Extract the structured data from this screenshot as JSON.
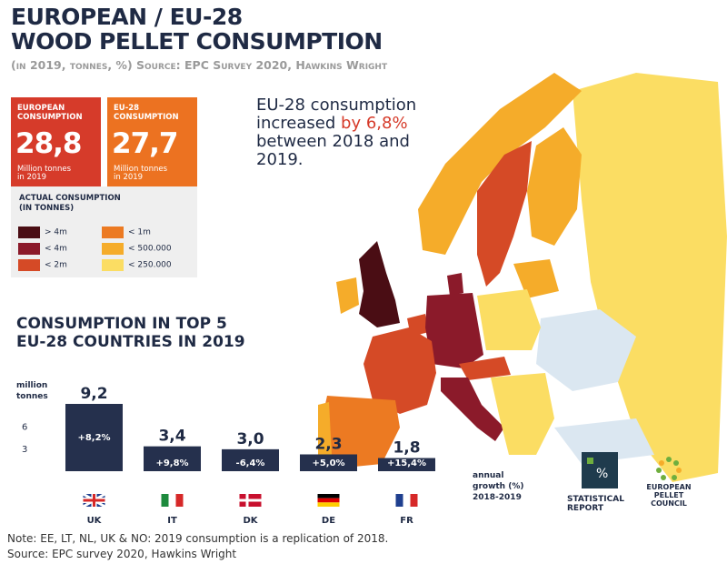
{
  "header": {
    "title_line1": "European / EU-28",
    "title_line2": "Wood pellet consumption",
    "subtitle": "(in 2019, tonnes, %) Source: EPC Survey 2020, Hawkins Wright"
  },
  "kpis": {
    "european": {
      "label_line1": "European",
      "label_line2": "consumption",
      "value": "28,8",
      "unit_line1": "Million tonnes",
      "unit_line2": "in 2019"
    },
    "eu28": {
      "label_line1": "EU-28",
      "label_line2": "consumption",
      "value": "27,7",
      "unit_line1": "Million tonnes",
      "unit_line2": "in 2019"
    }
  },
  "legend": {
    "title_line1": "Actual consumption",
    "title_line2": "(in tonnes)",
    "items": [
      {
        "label": "> 4m",
        "color": "#4a0d14"
      },
      {
        "label": "< 4m",
        "color": "#8b1a2a"
      },
      {
        "label": "< 2m",
        "color": "#d54a26"
      },
      {
        "label": "< 1m",
        "color": "#ec7a22"
      },
      {
        "label": "< 500.000",
        "color": "#f5ac2a"
      },
      {
        "label": "< 250.000",
        "color": "#fbdd63"
      }
    ]
  },
  "headline": {
    "line1": "EU-28 consumption",
    "line2_pre": "increased ",
    "line2_highlight": "by 6,8%",
    "line3": "between 2018 and",
    "line4": "2019."
  },
  "top5": {
    "title_line1": "Consumption in top 5",
    "title_line2": "EU-28 countries in 2019"
  },
  "chart_data": {
    "type": "bar",
    "categories": [
      "UK",
      "IT",
      "DK",
      "DE",
      "FR"
    ],
    "values": [
      9.2,
      3.4,
      3.0,
      2.3,
      1.8
    ],
    "value_labels": [
      "9,2",
      "3,4",
      "3,0",
      "2,3",
      "1,8"
    ],
    "growth_labels": [
      "+8,2%",
      "+9,8%",
      "-6,4%",
      "+5,0%",
      "+15,4%"
    ],
    "flags": [
      {
        "code": "UK",
        "colors": [
          "#1f3f8f",
          "#ffffff",
          "#d62828"
        ]
      },
      {
        "code": "IT",
        "colors": [
          "#1d8a3d",
          "#ffffff",
          "#d62828"
        ]
      },
      {
        "code": "DK",
        "colors": [
          "#c8102e",
          "#ffffff"
        ]
      },
      {
        "code": "DE",
        "colors": [
          "#000000",
          "#dd0000",
          "#ffce00"
        ]
      },
      {
        "code": "FR",
        "colors": [
          "#1f3f8f",
          "#ffffff",
          "#d62828"
        ]
      }
    ],
    "ylabel_line1": "million",
    "ylabel_line2": "tonnes",
    "yticks": [
      3,
      6
    ],
    "ylim": [
      0,
      9.2
    ],
    "growth_axis_line1": "annual",
    "growth_axis_line2": "growth (%)",
    "growth_axis_line3": "2018-2019",
    "bar_color": "#25304d"
  },
  "map": {
    "regions": [
      {
        "name": "Sweden",
        "color": "#d54a26"
      },
      {
        "name": "Norway",
        "color": "#f5ac2a"
      },
      {
        "name": "Finland",
        "color": "#f5ac2a"
      },
      {
        "name": "UK",
        "color": "#4a0d14"
      },
      {
        "name": "Ireland",
        "color": "#f5ac2a"
      },
      {
        "name": "France",
        "color": "#d54a26"
      },
      {
        "name": "Spain",
        "color": "#ec7a22"
      },
      {
        "name": "Portugal",
        "color": "#f5ac2a"
      },
      {
        "name": "Germany",
        "color": "#8b1a2a"
      },
      {
        "name": "Italy",
        "color": "#8b1a2a"
      },
      {
        "name": "Denmark",
        "color": "#8b1a2a"
      },
      {
        "name": "Poland",
        "color": "#fbdd63"
      },
      {
        "name": "Austria",
        "color": "#d54a26"
      },
      {
        "name": "Belgium",
        "color": "#d54a26"
      },
      {
        "name": "Baltics",
        "color": "#f5ac2a"
      },
      {
        "name": "Russia",
        "color": "#fbdd63"
      },
      {
        "name": "Ukraine",
        "color": "#dbe7f1"
      }
    ]
  },
  "logos": {
    "stat_line1": "Statistical",
    "stat_line2": "Report",
    "epc_line1": "European Pellet",
    "epc_line2": "Council"
  },
  "notes": {
    "line1": "Note: EE, LT, NL, UK & NO: 2019 consumption is a replication of 2018.",
    "line2": "Source: EPC survey 2020, Hawkins Wright"
  }
}
